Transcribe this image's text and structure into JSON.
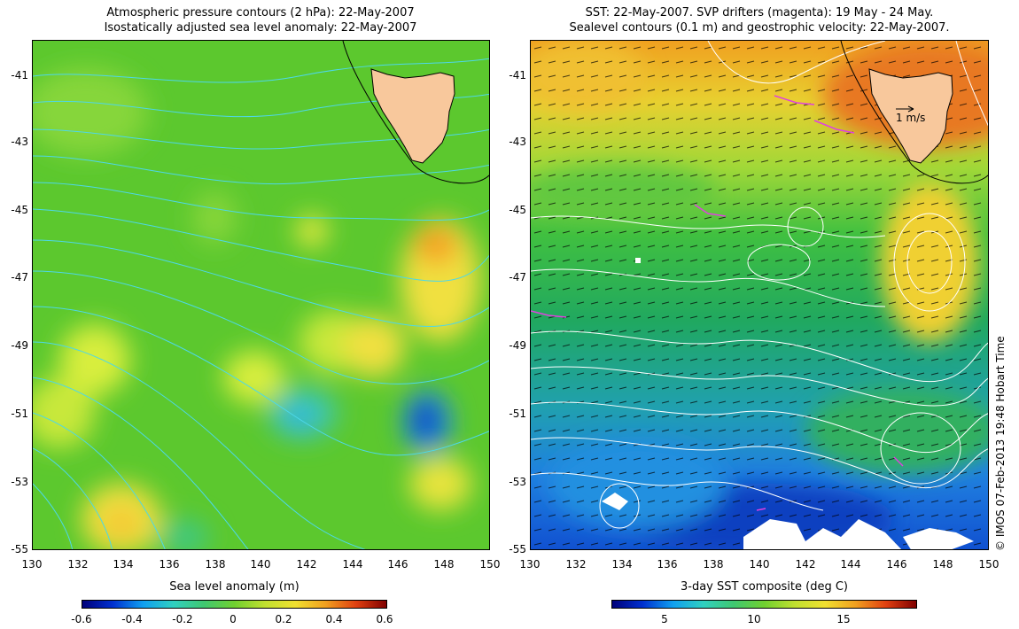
{
  "left_panel": {
    "title_line1": "Atmospheric pressure contours (2 hPa): 22-May-2007",
    "title_line2": "Isostatically adjusted sea level anomaly: 22-May-2007",
    "y_ticks": [
      "-41",
      "-43",
      "-45",
      "-47",
      "-49",
      "-51",
      "-53",
      "-55"
    ],
    "x_ticks": [
      "130",
      "132",
      "134",
      "136",
      "138",
      "140",
      "142",
      "144",
      "146",
      "148",
      "150"
    ],
    "colorbar_title": "Sea level anomaly (m)",
    "colorbar_ticks": [
      "-0.6",
      "-0.4",
      "-0.2",
      "0",
      "0.2",
      "0.4",
      "0.6"
    ]
  },
  "right_panel": {
    "title_line1": "SST: 22-May-2007. SVP drifters (magenta): 19 May - 24 May.",
    "title_line2": "Sealevel contours (0.1 m) and geostrophic velocity: 22-May-2007.",
    "y_ticks": [
      "-41",
      "-43",
      "-45",
      "-47",
      "-49",
      "-51",
      "-53",
      "-55"
    ],
    "x_ticks": [
      "130",
      "132",
      "134",
      "136",
      "138",
      "140",
      "142",
      "144",
      "146",
      "148",
      "150"
    ],
    "velocity_key": "1 m/s",
    "colorbar_title": "3-day SST composite (deg C)",
    "colorbar_ticks": [
      "5",
      "10",
      "15"
    ]
  },
  "credit": "© IMOS 07-Feb-2013 19:48 Hobart Time",
  "colors": {
    "land": "#f8c89c",
    "pressure_contour": "#4dd8e8",
    "sst_contour": "#ffffff",
    "drifter": "#e040e0"
  }
}
